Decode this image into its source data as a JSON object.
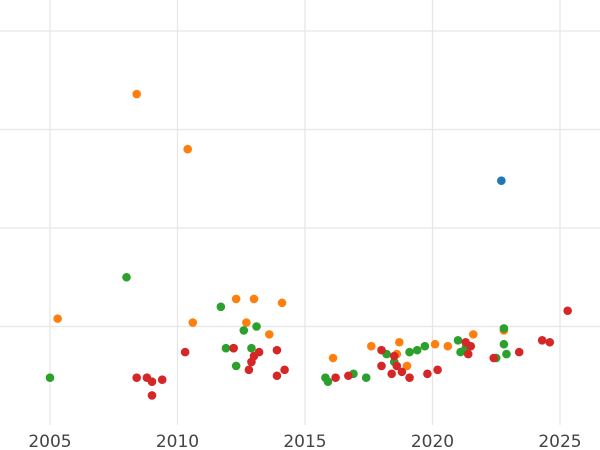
{
  "chart_data": {
    "type": "scatter",
    "title": "",
    "xlabel": "",
    "ylabel": "",
    "xlim": [
      2004.6,
      2026.6
    ],
    "ylim": [
      0,
      11.2
    ],
    "grid": true,
    "x_ticks": [
      2005,
      2010,
      2015,
      2020,
      2025
    ],
    "y_gridlines": [
      2.5,
      5,
      7.5,
      10
    ],
    "colors": {
      "blue": "#1f77b4",
      "orange": "#ff7f0e",
      "green": "#2ca02c",
      "red": "#d62728"
    },
    "series": [
      {
        "color": "blue",
        "points": [
          [
            2022.7,
            6.2
          ]
        ]
      },
      {
        "color": "orange",
        "points": [
          [
            2005.3,
            2.7
          ],
          [
            2008.4,
            8.4
          ],
          [
            2010.4,
            7.0
          ],
          [
            2010.6,
            2.6
          ],
          [
            2012.3,
            3.2
          ],
          [
            2012.7,
            2.6
          ],
          [
            2013.0,
            3.2
          ],
          [
            2013.6,
            2.3
          ],
          [
            2014.1,
            3.1
          ],
          [
            2016.1,
            1.7
          ],
          [
            2017.6,
            2.0
          ],
          [
            2018.6,
            1.8
          ],
          [
            2018.7,
            2.1
          ],
          [
            2019.0,
            1.5
          ],
          [
            2020.1,
            2.05
          ],
          [
            2020.6,
            2.0
          ],
          [
            2021.6,
            2.3
          ],
          [
            2022.8,
            2.4
          ]
        ]
      },
      {
        "color": "green",
        "points": [
          [
            2005.0,
            1.2
          ],
          [
            2008.0,
            3.75
          ],
          [
            2011.7,
            3.0
          ],
          [
            2011.9,
            1.95
          ],
          [
            2012.2,
            1.95
          ],
          [
            2012.3,
            1.5
          ],
          [
            2012.6,
            2.4
          ],
          [
            2012.9,
            1.95
          ],
          [
            2013.1,
            2.5
          ],
          [
            2015.8,
            1.2
          ],
          [
            2015.9,
            1.1
          ],
          [
            2016.9,
            1.3
          ],
          [
            2017.4,
            1.2
          ],
          [
            2018.2,
            1.8
          ],
          [
            2018.5,
            1.6
          ],
          [
            2019.1,
            1.85
          ],
          [
            2019.4,
            1.9
          ],
          [
            2019.7,
            2.0
          ],
          [
            2021.0,
            2.15
          ],
          [
            2021.1,
            1.85
          ],
          [
            2021.3,
            1.95
          ],
          [
            2022.5,
            1.7
          ],
          [
            2022.8,
            2.45
          ],
          [
            2022.8,
            2.05
          ],
          [
            2022.9,
            1.8
          ]
        ]
      },
      {
        "color": "red",
        "points": [
          [
            2008.4,
            1.2
          ],
          [
            2008.8,
            1.2
          ],
          [
            2009.0,
            1.1
          ],
          [
            2009.0,
            0.75
          ],
          [
            2009.4,
            1.15
          ],
          [
            2010.3,
            1.85
          ],
          [
            2012.2,
            1.95
          ],
          [
            2012.8,
            1.4
          ],
          [
            2012.9,
            1.6
          ],
          [
            2013.0,
            1.75
          ],
          [
            2013.2,
            1.85
          ],
          [
            2013.9,
            1.9
          ],
          [
            2013.9,
            1.25
          ],
          [
            2014.2,
            1.4
          ],
          [
            2016.2,
            1.2
          ],
          [
            2016.7,
            1.25
          ],
          [
            2018.0,
            1.9
          ],
          [
            2018.0,
            1.5
          ],
          [
            2018.4,
            1.3
          ],
          [
            2018.5,
            1.75
          ],
          [
            2018.6,
            1.5
          ],
          [
            2018.8,
            1.35
          ],
          [
            2019.1,
            1.2
          ],
          [
            2019.8,
            1.3
          ],
          [
            2020.2,
            1.4
          ],
          [
            2021.3,
            2.1
          ],
          [
            2021.4,
            1.8
          ],
          [
            2021.5,
            2.0
          ],
          [
            2022.4,
            1.7
          ],
          [
            2023.4,
            1.85
          ],
          [
            2024.3,
            2.15
          ],
          [
            2024.6,
            2.1
          ],
          [
            2025.3,
            2.9
          ]
        ]
      }
    ]
  }
}
